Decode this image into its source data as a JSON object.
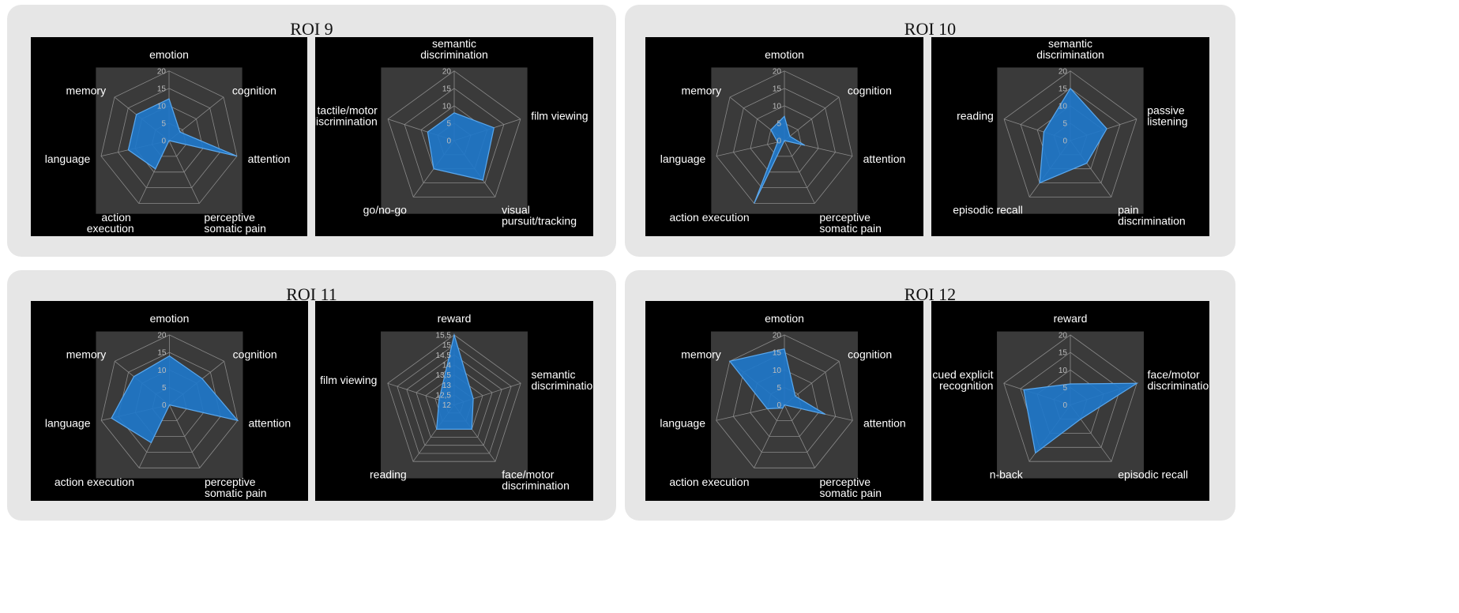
{
  "rois": [
    {
      "title": "ROI 9",
      "charts": [
        0,
        1
      ]
    },
    {
      "title": "ROI 10",
      "charts": [
        2,
        3
      ]
    },
    {
      "title": "ROI 11",
      "charts": [
        4,
        5
      ]
    },
    {
      "title": "ROI 12",
      "charts": [
        6,
        7
      ]
    }
  ],
  "colors": {
    "fill": "#1f77c9",
    "stroke": "#5aa8ee",
    "plot_bg": "#3a3a3a",
    "grid": "#8a8a8a"
  },
  "chart_data": [
    {
      "type": "radar",
      "roi": "ROI 9",
      "rmax": 20,
      "ticks": [
        "0",
        "5",
        "10",
        "15",
        "20"
      ],
      "axes": [
        "emotion",
        "cognition",
        "attention",
        "perceptive somatic pain",
        "action  execution",
        "language",
        "memory"
      ],
      "values": [
        12,
        4,
        20,
        0,
        9,
        12,
        12
      ]
    },
    {
      "type": "radar",
      "roi": "ROI 9",
      "rmax": 20,
      "ticks": [
        "0",
        "5",
        "10",
        "15",
        "20"
      ],
      "axes": [
        "semantic discrimination",
        "film viewing",
        "visual pursuit/tracking",
        "go/no-go",
        "tactile/motor discrimination"
      ],
      "values": [
        8,
        12,
        14,
        10,
        8
      ]
    },
    {
      "type": "radar",
      "roi": "ROI 10",
      "rmax": 20,
      "ticks": [
        "0",
        "5",
        "10",
        "15",
        "20"
      ],
      "axes": [
        "emotion",
        "cognition",
        "attention",
        "perceptive somatic pain",
        "action execution",
        "language",
        "memory"
      ],
      "values": [
        7,
        2,
        6,
        0,
        20,
        2,
        5
      ]
    },
    {
      "type": "radar",
      "roi": "ROI 10",
      "rmax": 20,
      "ticks": [
        "0",
        "5",
        "10",
        "15",
        "20"
      ],
      "axes": [
        "semantic discrimination",
        "passive listening",
        "pain discrimination",
        "episodic recall",
        "reading"
      ],
      "values": [
        15,
        11,
        8,
        15,
        8
      ]
    },
    {
      "type": "radar",
      "roi": "ROI 11",
      "rmax": 20,
      "ticks": [
        "0",
        "5",
        "10",
        "15",
        "20"
      ],
      "axes": [
        "emotion",
        "cognition",
        "attention",
        "perceptive somatic pain",
        "action execution",
        "language",
        "memory"
      ],
      "values": [
        14,
        12,
        20,
        0,
        12,
        17,
        13
      ]
    },
    {
      "type": "radar",
      "roi": "ROI 11",
      "rmin": 12,
      "rmax": 15.5,
      "ticks": [
        "12",
        "12,5",
        "13",
        "13,5",
        "14",
        "14,5",
        "15",
        "15,5"
      ],
      "axes": [
        "reward",
        "semantic discrimination",
        "face/motor discrimination",
        "reading",
        "film viewing"
      ],
      "values": [
        15.5,
        13,
        13.5,
        13.5,
        12.8
      ]
    },
    {
      "type": "radar",
      "roi": "ROI 12",
      "rmax": 20,
      "ticks": [
        "0",
        "5",
        "10",
        "15",
        "20"
      ],
      "axes": [
        "emotion",
        "cognition",
        "attention",
        "perceptive somatic pain",
        "action execution",
        "language",
        "memory"
      ],
      "values": [
        16,
        4,
        12,
        0,
        1,
        5,
        20
      ]
    },
    {
      "type": "radar",
      "roi": "ROI 12",
      "rmax": 20,
      "ticks": [
        "0",
        "5",
        "10",
        "15",
        "20"
      ],
      "axes": [
        "reward",
        "face/motor discrimination",
        "episodic recall",
        "n-back",
        "cued explicit recognition"
      ],
      "values": [
        6,
        20,
        5,
        17,
        14
      ]
    }
  ]
}
